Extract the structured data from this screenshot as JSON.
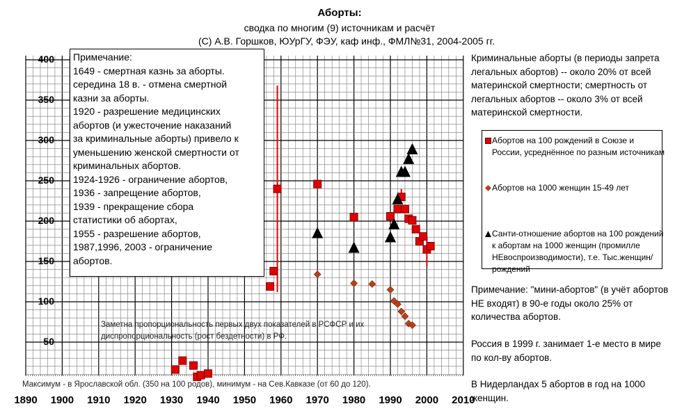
{
  "header": {
    "title": "Аборты:",
    "subtitle": "сводка по многим (9) источникам и расчёт",
    "credit": "(С) А.В. Горшков, ЮУрГУ, ФЭУ, каф инф., ФМЛ№31, 2004-2005 гг."
  },
  "note_box": {
    "lines": [
      "Примечание:",
      "1649 - смертная казнь за аборты.",
      "середина 18 в. - отмена смертной",
      "казни за аборты.",
      "1920 - разрешение медицинских",
      "абортов (и ужесточение наказаний",
      "за криминальные аборты) привело к",
      "уменьшению женской смертности от",
      "криминальных абортов.",
      "1924-1926 - ограничение абортов,",
      "1936 - запрещение абортов,",
      "1939 - прекращение сбора",
      "статистики об абортах,",
      "1955 - разрешение абортов,",
      "1987,1996, 2003 - ограничение",
      "абортов."
    ]
  },
  "right_notes": {
    "criminal": "Криминальные аборты (в периоды запрета легальных абортов) -- около 20% от всей материнской смертности; смертность от легальных абортов -- около 3% от всей материнской смертности.",
    "mini": "Примечание: \"мини-абортов\" (в учёт абортов НЕ входят) в 90-е годы около 25% от количества абортов.",
    "russia": "Россия в 1999 г. занимает 1-е место в мире по кол-ву абортов.",
    "netherlands": "В Нидерландах 5 абортов в год на 1000 женщин."
  },
  "annotations": {
    "proportionality": "Заметна пропорциональность первых двух показателей в РСФСР и их диспропорциональность (рост бездетности) в РФ.",
    "max_min": "Максимум - в Ярославской обл. (350 на 100 родов), минимум - на Сев.Кавказе (от 60 до 120)."
  },
  "colors": {
    "square": "#e00000",
    "diamond": "#b8401a",
    "triangle": "#000000",
    "vline": "#e00000"
  },
  "chart_data": {
    "type": "scatter",
    "title": "Аборты:",
    "xlim": [
      1890,
      2010
    ],
    "ylim": [
      0,
      400
    ],
    "x_ticks": [
      "1890",
      "1900",
      "1910",
      "1920",
      "1930",
      "1940",
      "1950",
      "1960",
      "1970",
      "1980",
      "1990",
      "2000",
      "2010"
    ],
    "y_ticks": [
      "50",
      "100",
      "150",
      "200",
      "250",
      "300",
      "350",
      "400"
    ],
    "grid": true,
    "legend_position": "right",
    "series": [
      {
        "name": "Абортов на 100 рождений в Союзе и России, усреднённое по разным источникам",
        "marker": "square",
        "points": [
          [
            1931,
            16
          ],
          [
            1933,
            27
          ],
          [
            1936,
            21
          ],
          [
            1937,
            7
          ],
          [
            1938,
            9
          ],
          [
            1940,
            11
          ],
          [
            1957,
            119
          ],
          [
            1958,
            138
          ],
          [
            1959,
            240
          ],
          [
            1970,
            246
          ],
          [
            1980,
            205
          ],
          [
            1990,
            206
          ],
          [
            1992,
            215
          ],
          [
            1993,
            230
          ],
          [
            1994,
            215
          ],
          [
            1995,
            203
          ],
          [
            1996,
            201
          ],
          [
            1997,
            190
          ],
          [
            1998,
            175
          ],
          [
            1999,
            181
          ],
          [
            2000,
            165
          ],
          [
            2001,
            169
          ]
        ]
      },
      {
        "name": "Абортов на 1000 женщин 15-49 лет",
        "marker": "diamond",
        "points": [
          [
            1970,
            134
          ],
          [
            1980,
            123
          ],
          [
            1985,
            122
          ],
          [
            1990,
            115
          ],
          [
            1991,
            101
          ],
          [
            1992,
            97
          ],
          [
            1993,
            88
          ],
          [
            1994,
            82
          ],
          [
            1995,
            73
          ],
          [
            1996,
            71
          ]
        ]
      },
      {
        "name": "Санти-отношение абортов на 100 рождений к абортам на 1000 женщин (промилле НЕвоспроизводимости), т.е. Тыс.женщин/рождений",
        "marker": "triangle",
        "points": [
          [
            1970,
            184
          ],
          [
            1980,
            166
          ],
          [
            1990,
            179
          ],
          [
            1991,
            195
          ],
          [
            1992,
            226
          ],
          [
            1993,
            260
          ],
          [
            1994,
            260
          ],
          [
            1995,
            276
          ],
          [
            1996,
            288
          ]
        ]
      }
    ],
    "ranges": [
      [
        1959,
        112,
        368
      ],
      [
        2000,
        144,
        181
      ],
      [
        1993,
        230,
        240
      ]
    ]
  }
}
